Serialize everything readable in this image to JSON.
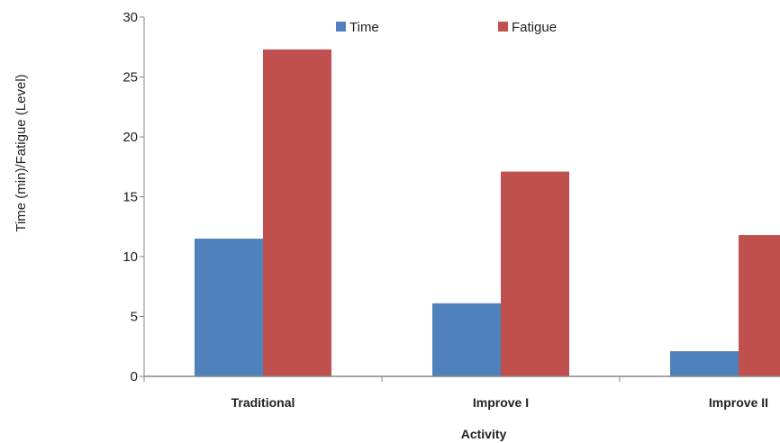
{
  "chart_data": {
    "type": "bar",
    "title": "",
    "xlabel": "Activity",
    "ylabel": "Time (min)/Fatigue (Level)",
    "categories": [
      "Traditional",
      "Improve I",
      "Improve II"
    ],
    "series": [
      {
        "name": "Time",
        "values": [
          11.5,
          6.1,
          2.1
        ],
        "color": "#4f81bd"
      },
      {
        "name": "Fatigue",
        "values": [
          27.3,
          17.1,
          11.8
        ],
        "color": "#c0504d"
      }
    ],
    "ylim": [
      0,
      30
    ],
    "yticks": [
      "0",
      "5",
      "10",
      "15",
      "20",
      "25",
      "30"
    ],
    "legend": "top",
    "grid": false
  }
}
